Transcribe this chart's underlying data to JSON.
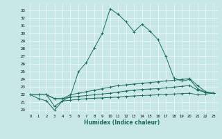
{
  "title": "",
  "xlabel": "Humidex (Indice chaleur)",
  "background_color": "#c8e8e8",
  "line_color": "#1a6b5a",
  "xlim": [
    -0.5,
    23.5
  ],
  "ylim": [
    19.5,
    33.8
  ],
  "yticks": [
    20,
    21,
    22,
    23,
    24,
    25,
    26,
    27,
    28,
    29,
    30,
    31,
    32,
    33
  ],
  "xticks": [
    0,
    1,
    2,
    3,
    4,
    5,
    6,
    7,
    8,
    9,
    10,
    11,
    12,
    13,
    14,
    15,
    16,
    17,
    18,
    19,
    20,
    21,
    22,
    23
  ],
  "series": [
    {
      "x": [
        0,
        1,
        2,
        3,
        4,
        5,
        6,
        7,
        8,
        9,
        10,
        11,
        12,
        13,
        14,
        15,
        16,
        17,
        18,
        19,
        20,
        21,
        22,
        23
      ],
      "y": [
        22,
        21.5,
        21.2,
        20.0,
        21.2,
        21.8,
        25.0,
        26.2,
        28.1,
        30.0,
        33.2,
        32.5,
        31.5,
        30.2,
        31.2,
        30.3,
        29.2,
        27.0,
        24.2,
        23.8,
        24.0,
        22.8,
        22.3,
        22.2
      ]
    },
    {
      "x": [
        0,
        1,
        2,
        3,
        4,
        5,
        6,
        7,
        8,
        9,
        10,
        11,
        12,
        13,
        14,
        15,
        16,
        17,
        18,
        19,
        20,
        21,
        22,
        23
      ],
      "y": [
        22.0,
        22.0,
        22.0,
        21.5,
        21.5,
        22.0,
        22.2,
        22.4,
        22.6,
        22.8,
        23.0,
        23.2,
        23.3,
        23.4,
        23.5,
        23.6,
        23.7,
        23.8,
        23.9,
        24.0,
        24.1,
        23.2,
        22.4,
        22.2
      ]
    },
    {
      "x": [
        0,
        1,
        2,
        3,
        4,
        5,
        6,
        7,
        8,
        9,
        10,
        11,
        12,
        13,
        14,
        15,
        16,
        17,
        18,
        19,
        20,
        21,
        22,
        23
      ],
      "y": [
        22.0,
        22.0,
        22.0,
        21.5,
        21.5,
        21.7,
        21.8,
        21.9,
        22.0,
        22.1,
        22.2,
        22.35,
        22.5,
        22.6,
        22.7,
        22.75,
        22.8,
        22.9,
        23.0,
        23.1,
        23.2,
        22.6,
        22.3,
        22.2
      ]
    },
    {
      "x": [
        0,
        1,
        2,
        3,
        4,
        5,
        6,
        7,
        8,
        9,
        10,
        11,
        12,
        13,
        14,
        15,
        16,
        17,
        18,
        19,
        20,
        21,
        22,
        23
      ],
      "y": [
        22.0,
        22.0,
        22.0,
        20.5,
        21.2,
        21.3,
        21.4,
        21.5,
        21.55,
        21.6,
        21.65,
        21.7,
        21.8,
        21.85,
        21.9,
        21.95,
        22.0,
        22.05,
        22.1,
        22.15,
        22.2,
        22.0,
        22.1,
        22.2
      ]
    }
  ]
}
